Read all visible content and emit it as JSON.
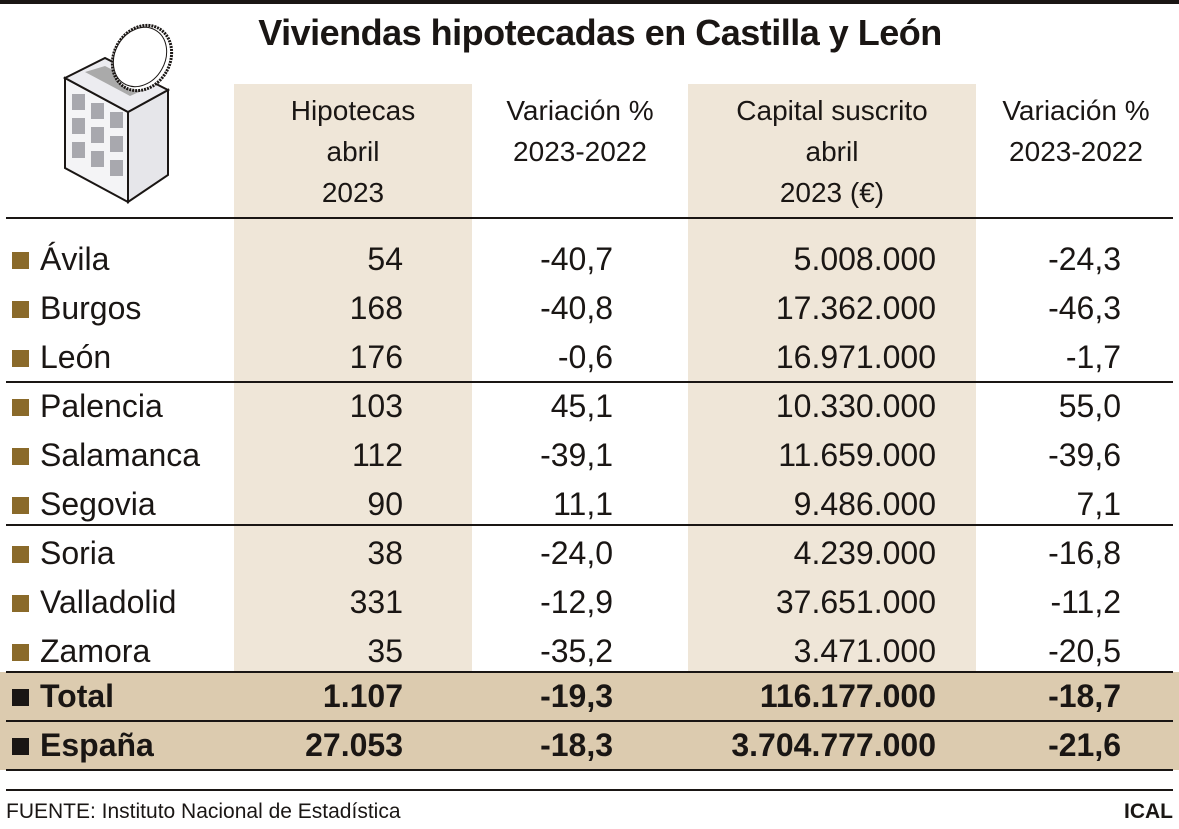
{
  "title": "Viviendas hipotecadas en Castilla y León",
  "icon": "building-coin-icon",
  "colors": {
    "shade": "#efe6d8",
    "summary": "#dccbaf",
    "bullet": "#8a6a2a"
  },
  "chart_data": {
    "type": "table",
    "title": "Viviendas hipotecadas en Castilla y León",
    "columns": [
      "",
      "Hipotecas abril 2023",
      "Variación % 2023-2022",
      "Capital suscrito abril 2023 (€)",
      "Variación % 2023-2022"
    ],
    "header_lines": [
      [
        "Hipotecas",
        "abril",
        "2023"
      ],
      [
        "Variación %",
        "2023-2022"
      ],
      [
        "Capital suscrito",
        "abril",
        "2023 (€)"
      ],
      [
        "Variación %",
        "2023-2022"
      ]
    ],
    "rows": [
      [
        "Ávila",
        "54",
        "-40,7",
        "5.008.000",
        "-24,3"
      ],
      [
        "Burgos",
        "168",
        "-40,8",
        "17.362.000",
        "-46,3"
      ],
      [
        "León",
        "176",
        "-0,6",
        "16.971.000",
        "-1,7"
      ],
      [
        "Palencia",
        "103",
        "45,1",
        "10.330.000",
        "55,0"
      ],
      [
        "Salamanca",
        "112",
        "-39,1",
        "11.659.000",
        "-39,6"
      ],
      [
        "Segovia",
        "90",
        "11,1",
        "9.486.000",
        "7,1"
      ],
      [
        "Soria",
        "38",
        "-24,0",
        "4.239.000",
        "-16,8"
      ],
      [
        "Valladolid",
        "331",
        "-12,9",
        "37.651.000",
        "-11,2"
      ],
      [
        "Zamora",
        "35",
        "-35,2",
        "3.471.000",
        "-20,5"
      ]
    ],
    "summary_rows": [
      [
        "Total",
        "1.107",
        "-19,3",
        "116.177.000",
        "-18,7"
      ],
      [
        "España",
        "27.053",
        "-18,3",
        "3.704.777.000",
        "-21,6"
      ]
    ]
  },
  "footer": {
    "source": "FUENTE: Instituto Nacional de Estadística",
    "brand": "ICAL"
  }
}
